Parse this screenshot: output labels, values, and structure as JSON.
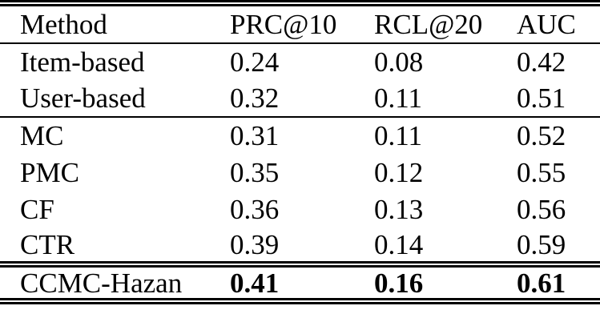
{
  "table": {
    "columns": [
      "Method",
      "PRC@10",
      "RCL@20",
      "AUC"
    ],
    "rows": [
      {
        "method": "Item-based",
        "prc10": "0.24",
        "rcl20": "0.08",
        "auc": "0.42",
        "bold": false
      },
      {
        "method": "User-based",
        "prc10": "0.32",
        "rcl20": "0.11",
        "auc": "0.51",
        "bold": false
      },
      {
        "method": "MC",
        "prc10": "0.31",
        "rcl20": "0.11",
        "auc": "0.52",
        "bold": false
      },
      {
        "method": "PMC",
        "prc10": "0.35",
        "rcl20": "0.12",
        "auc": "0.55",
        "bold": false
      },
      {
        "method": "CF",
        "prc10": "0.36",
        "rcl20": "0.13",
        "auc": "0.56",
        "bold": false
      },
      {
        "method": "CTR",
        "prc10": "0.39",
        "rcl20": "0.14",
        "auc": "0.59",
        "bold": false
      },
      {
        "method": "CCMC-Hazan",
        "prc10": "0.41",
        "rcl20": "0.16",
        "auc": "0.61",
        "bold": true
      }
    ],
    "colors": {
      "text": "#000000",
      "background": "#ffffff",
      "rule": "#000000"
    }
  },
  "chart_data": {
    "type": "table",
    "title": "",
    "columns": [
      "Method",
      "PRC@10",
      "RCL@20",
      "AUC"
    ],
    "rows": [
      [
        "Item-based",
        0.24,
        0.08,
        0.42
      ],
      [
        "User-based",
        0.32,
        0.11,
        0.51
      ],
      [
        "MC",
        0.31,
        0.11,
        0.52
      ],
      [
        "PMC",
        0.35,
        0.12,
        0.55
      ],
      [
        "CF",
        0.36,
        0.13,
        0.56
      ],
      [
        "CTR",
        0.39,
        0.14,
        0.59
      ],
      [
        "CCMC-Hazan",
        0.41,
        0.16,
        0.61
      ]
    ],
    "bold_row": "CCMC-Hazan",
    "layout": {
      "top_rule": "double",
      "rule_after_header": "single",
      "rule_after_row": "User-based",
      "rule_before_bold_row": "double",
      "bottom_rule": "double"
    }
  }
}
